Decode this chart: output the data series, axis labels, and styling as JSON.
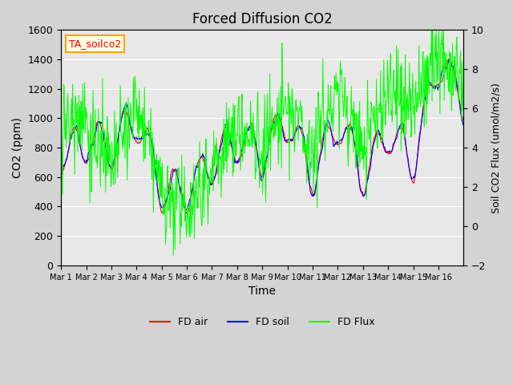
{
  "title": "Forced Diffusion CO2",
  "xlabel": "Time",
  "ylabel_left": "CO2 (ppm)",
  "ylabel_right": "Soil CO2 Flux (umol/m2/s)",
  "annotation": "TA_soilco2",
  "ylim_left": [
    0,
    1600
  ],
  "ylim_right": [
    -2,
    10
  ],
  "background_color": "#d3d3d3",
  "plot_bg_color": "#e8e8e8",
  "legend_entries": [
    "FD air",
    "FD soil",
    "FD Flux"
  ],
  "legend_colors": [
    "red",
    "blue",
    "lime"
  ],
  "line_colors": {
    "fd_air": "red",
    "fd_soil": "blue",
    "fd_flux": "lime"
  },
  "xtick_labels": [
    "Mar 1",
    "Mar 2",
    "Mar 3",
    "Mar 4",
    "Mar 5",
    "Mar 6",
    "Mar 7",
    "Mar 8",
    "Mar 9",
    "Mar 10",
    "Mar 11",
    "Mar 12",
    "Mar 13",
    "Mar 14",
    "Mar 15",
    "Mar 16"
  ],
  "n_days": 16,
  "pts_per_day": 48
}
